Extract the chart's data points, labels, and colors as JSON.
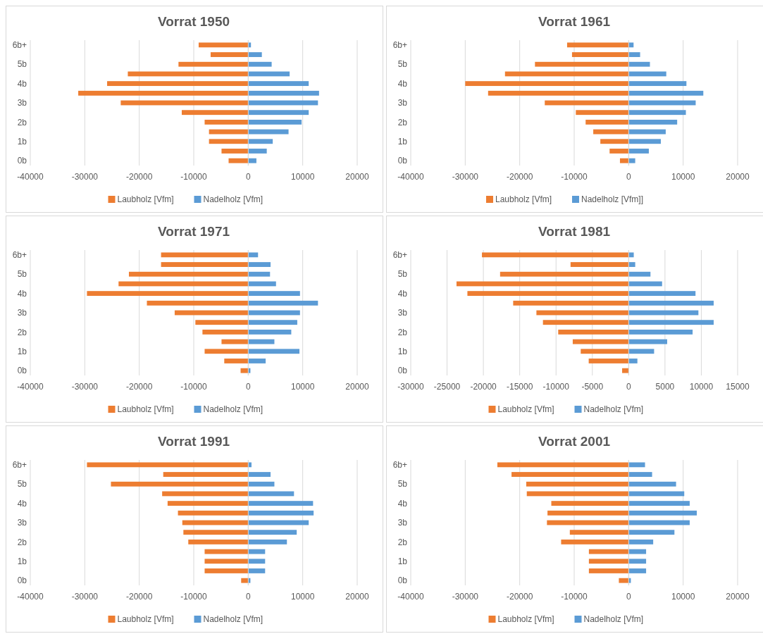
{
  "chart_data": [
    {
      "type": "bar",
      "title": "Vorrat 1950",
      "orientation": "horizontal",
      "stacked": true,
      "grid": "x",
      "legend": "bottom",
      "categories": [
        "6b+",
        null,
        "5b",
        null,
        "4b",
        null,
        "3b",
        null,
        "2b",
        null,
        "1b",
        null,
        "0b"
      ],
      "xlim": [
        -40000,
        20000
      ],
      "xticks": [
        {
          "value": -40000,
          "label": "-40000"
        },
        {
          "value": -30000,
          "label": "-30000"
        },
        {
          "value": -20000,
          "label": "-20000"
        },
        {
          "value": -10000,
          "label": "-10000"
        },
        0,
        10000,
        20000
      ],
      "series": [
        {
          "name": "Laubholz [Vfm]",
          "color": "#ed7d31",
          "values": [
            -9100,
            -6900,
            -12800,
            -22100,
            -25900,
            -31200,
            -23400,
            -12200,
            -8000,
            -7200,
            -7200,
            -4900,
            -3600
          ]
        },
        {
          "name": "Nadelholz [Vfm]",
          "color": "#5b9bd5",
          "values": [
            500,
            2500,
            4300,
            7600,
            11100,
            13000,
            12800,
            11100,
            9800,
            7400,
            4500,
            3400,
            1500
          ]
        }
      ]
    },
    {
      "type": "bar",
      "title": "Vorrat 1961",
      "orientation": "horizontal",
      "stacked": true,
      "grid": "x",
      "legend": "bottom",
      "categories": [
        "6b+",
        null,
        "5b",
        null,
        "4b",
        null,
        "3b",
        null,
        "2b",
        null,
        "1b",
        null,
        "0b"
      ],
      "xlim": [
        -40000,
        20000
      ],
      "xticks": [
        {
          "value": -40000,
          "label": "-40000"
        },
        {
          "value": -30000,
          "label": "-30000"
        },
        {
          "value": -20000,
          "label": "-20000"
        },
        {
          "value": -10000,
          "label": "-10000"
        },
        0,
        10000,
        20000
      ],
      "series": [
        {
          "name": "Laubholz [Vfm]",
          "color": "#ed7d31",
          "values": [
            -11300,
            -10400,
            -17200,
            -22700,
            -30000,
            -25800,
            -15400,
            -9700,
            -7900,
            -6500,
            -5200,
            -3500,
            -1600
          ]
        },
        {
          "name": "Nadelholz [Vfm]]",
          "color": "#5b9bd5",
          "values": [
            900,
            2100,
            3900,
            6900,
            10600,
            13700,
            12300,
            10500,
            8900,
            6800,
            5900,
            3700,
            1200
          ]
        }
      ]
    },
    {
      "type": "bar",
      "title": "Vorrat 1971",
      "orientation": "horizontal",
      "stacked": true,
      "grid": "x",
      "legend": "bottom",
      "categories": [
        "6b+",
        null,
        "5b",
        null,
        "4b",
        null,
        "3b",
        null,
        "2b",
        null,
        "1b",
        null,
        "0b"
      ],
      "xlim": [
        -40000,
        20000
      ],
      "xticks": [
        {
          "value": -40000,
          "label": "-40000"
        },
        {
          "value": -30000,
          "label": "-30000"
        },
        {
          "value": -20000,
          "label": "-20000"
        },
        {
          "value": -10000,
          "label": "-10000"
        },
        0,
        10000,
        20000
      ],
      "series": [
        {
          "name": "Laubholz [Vfm]",
          "color": "#ed7d31",
          "values": [
            -16000,
            -16000,
            -21900,
            -23800,
            -29600,
            -18600,
            -13500,
            -9700,
            -8400,
            -4900,
            -8000,
            -4400,
            -1400
          ]
        },
        {
          "name": "Nadelholz [Vfm]",
          "color": "#5b9bd5",
          "values": [
            1800,
            4100,
            4000,
            5100,
            9500,
            12800,
            9500,
            9000,
            7900,
            4800,
            9400,
            3200,
            400
          ]
        }
      ]
    },
    {
      "type": "bar",
      "title": "Vorrat 1981",
      "orientation": "horizontal",
      "stacked": true,
      "grid": "x",
      "legend": "bottom",
      "categories": [
        "6b+",
        null,
        "5b",
        null,
        "4b",
        null,
        "3b",
        null,
        "2b",
        null,
        "1b",
        null,
        "0b"
      ],
      "xlim": [
        -30000,
        15000
      ],
      "xticks": [
        {
          "value": -30000,
          "label": "-30000"
        },
        {
          "value": -25000,
          "label": "-25000"
        },
        {
          "value": -20000,
          "label": "-20000"
        },
        {
          "value": -15000,
          "label": "-15000"
        },
        {
          "value": -10000,
          "label": "-10000"
        },
        {
          "value": -5000,
          "label": "-5000"
        },
        0,
        5000,
        10000,
        15000
      ],
      "series": [
        {
          "name": "Laubholz [Vfm]",
          "color": "#ed7d31",
          "values": [
            -20200,
            -8000,
            -17700,
            -23700,
            -22200,
            -15900,
            -12700,
            -11800,
            -9700,
            -7700,
            -6600,
            -5500,
            -900
          ]
        },
        {
          "name": "Nadelholz [Vfm]",
          "color": "#5b9bd5",
          "values": [
            700,
            900,
            3000,
            4600,
            9200,
            11700,
            9600,
            11700,
            8800,
            5300,
            3500,
            1200,
            0
          ]
        }
      ]
    },
    {
      "type": "bar",
      "title": "Vorrat 1991",
      "orientation": "horizontal",
      "stacked": true,
      "grid": "x",
      "legend": "bottom",
      "categories": [
        "6b+",
        null,
        "5b",
        null,
        "4b",
        null,
        "3b",
        null,
        "2b",
        null,
        "1b",
        null,
        "0b"
      ],
      "xlim": [
        -40000,
        20000
      ],
      "xticks": [
        {
          "value": -40000,
          "label": "-40000"
        },
        {
          "value": -30000,
          "label": "-30000"
        },
        {
          "value": -20000,
          "label": "-20000"
        },
        {
          "value": -10000,
          "label": "-10000"
        },
        0,
        10000,
        20000
      ],
      "series": [
        {
          "name": "Laubholz [Vfm]",
          "color": "#ed7d31",
          "values": [
            -29600,
            -15600,
            -25200,
            -15800,
            -14800,
            -12900,
            -12100,
            -11900,
            -11000,
            -8000,
            -8000,
            -8000,
            -1300
          ]
        },
        {
          "name": "Nadelholz [Vfm]",
          "color": "#5b9bd5",
          "values": [
            600,
            4100,
            4800,
            8400,
            11900,
            12000,
            11100,
            8900,
            7100,
            3100,
            3100,
            3100,
            400
          ]
        }
      ]
    },
    {
      "type": "bar",
      "title": "Vorrat 2001",
      "orientation": "horizontal",
      "stacked": true,
      "grid": "x",
      "legend": "bottom",
      "categories": [
        "6b+",
        null,
        "5b",
        null,
        "4b",
        null,
        "3b",
        null,
        "2b",
        null,
        "1b",
        null,
        "0b"
      ],
      "xlim": [
        -40000,
        20000
      ],
      "xticks": [
        {
          "value": -40000,
          "label": "-40000"
        },
        {
          "value": -30000,
          "label": "-30000"
        },
        {
          "value": -20000,
          "label": "-20000"
        },
        {
          "value": -10000,
          "label": "-10000"
        },
        0,
        10000,
        20000
      ],
      "series": [
        {
          "name": "Laubholz [Vfm]",
          "color": "#ed7d31",
          "values": [
            -24100,
            -21500,
            -18800,
            -18700,
            -14200,
            -14900,
            -15000,
            -10800,
            -12400,
            -7300,
            -7300,
            -7300,
            -1800
          ]
        },
        {
          "name": "Nadelholz [Vfm]",
          "color": "#5b9bd5",
          "values": [
            3000,
            4300,
            8700,
            10200,
            11200,
            12500,
            11200,
            8400,
            4500,
            3200,
            3200,
            3200,
            400
          ]
        }
      ]
    }
  ]
}
